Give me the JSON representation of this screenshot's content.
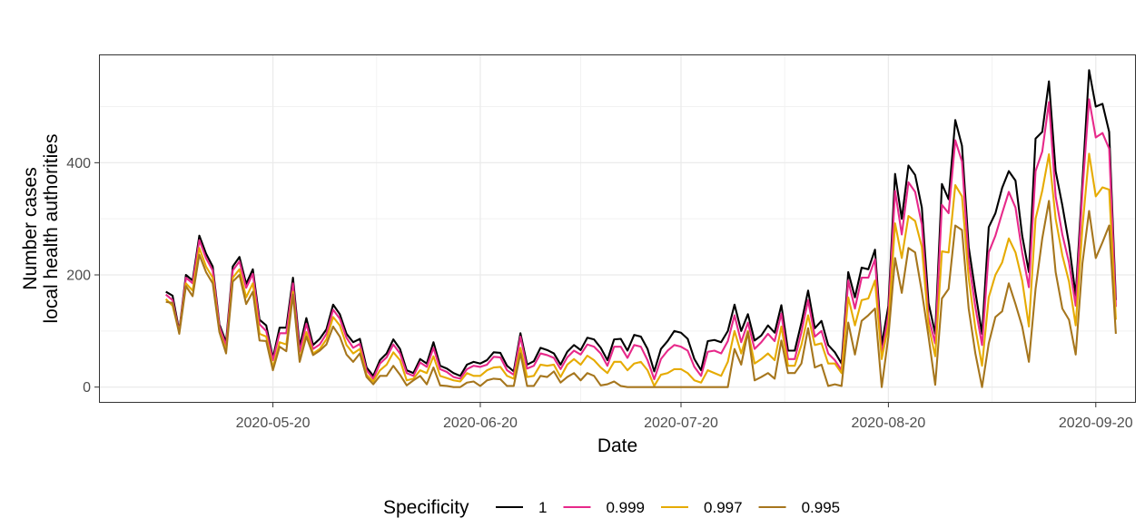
{
  "chart_data": {
    "type": "line",
    "xlabel": "Date",
    "ylabel_lines": [
      "Number cases",
      "local health authorities"
    ],
    "x_ticks": [
      "2020-05-20",
      "2020-06-20",
      "2020-07-20",
      "2020-08-20",
      "2020-09-20"
    ],
    "y_ticks": [
      0,
      200,
      400
    ],
    "xlim": [
      "2020-04-24",
      "2020-09-26"
    ],
    "ylim": [
      -28,
      593
    ],
    "grid": true,
    "legend_position": "bottom",
    "legend_title": "Specificity",
    "start_date": "2020-05-04",
    "series": [
      {
        "name": "1",
        "color": "#000000",
        "values": [
          170,
          163,
          100,
          200,
          190,
          270,
          238,
          215,
          112,
          80,
          215,
          232,
          184,
          210,
          120,
          110,
          52,
          106,
          106,
          195,
          72,
          123,
          75,
          86,
          103,
          147,
          130,
          95,
          80,
          86,
          35,
          20,
          48,
          60,
          85,
          68,
          30,
          25,
          50,
          42,
          80,
          38,
          33,
          25,
          20,
          40,
          45,
          42,
          48,
          62,
          61,
          38,
          28,
          96,
          40,
          46,
          70,
          66,
          60,
          40,
          63,
          75,
          66,
          88,
          85,
          70,
          48,
          85,
          86,
          65,
          93,
          90,
          68,
          28,
          68,
          82,
          100,
          97,
          86,
          50,
          30,
          82,
          84,
          80,
          100,
          147,
          100,
          130,
          83,
          92,
          110,
          97,
          146,
          65,
          65,
          115,
          172,
          105,
          118,
          75,
          62,
          42,
          205,
          160,
          213,
          210,
          245,
          75,
          145,
          380,
          300,
          395,
          378,
          320,
          150,
          95,
          362,
          335,
          476,
          430,
          250,
          170,
          95,
          285,
          310,
          355,
          385,
          368,
          270,
          205,
          443,
          455,
          545,
          385,
          324,
          255,
          163,
          365,
          565,
          500,
          505,
          455,
          155
        ]
      },
      {
        "name": "0.999",
        "color": "#e7298a",
        "values": [
          165,
          155,
          98,
          195,
          185,
          262,
          230,
          208,
          108,
          74,
          208,
          224,
          177,
          202,
          112,
          100,
          48,
          96,
          96,
          185,
          63,
          113,
          68,
          76,
          95,
          138,
          122,
          88,
          70,
          77,
          30,
          15,
          42,
          53,
          76,
          60,
          25,
          20,
          44,
          36,
          70,
          32,
          27,
          18,
          15,
          32,
          38,
          36,
          40,
          54,
          53,
          30,
          22,
          90,
          33,
          38,
          60,
          57,
          52,
          32,
          53,
          65,
          58,
          76,
          72,
          60,
          38,
          72,
          72,
          52,
          75,
          72,
          48,
          14,
          50,
          65,
          75,
          72,
          65,
          36,
          20,
          63,
          65,
          60,
          82,
          128,
          80,
          115,
          68,
          80,
          95,
          82,
          131,
          50,
          50,
          98,
          155,
          90,
          100,
          60,
          48,
          30,
          190,
          140,
          195,
          195,
          228,
          58,
          130,
          350,
          272,
          365,
          348,
          290,
          125,
          78,
          325,
          310,
          440,
          402,
          225,
          143,
          75,
          240,
          270,
          310,
          348,
          320,
          240,
          178,
          385,
          420,
          508,
          340,
          272,
          222,
          145,
          348,
          513,
          445,
          453,
          425,
          143
        ]
      },
      {
        "name": "0.997",
        "color": "#e6ab02",
        "values": [
          157,
          145,
          97,
          185,
          172,
          248,
          215,
          195,
          100,
          65,
          195,
          210,
          160,
          185,
          95,
          90,
          35,
          80,
          76,
          170,
          48,
          98,
          60,
          68,
          85,
          125,
          110,
          75,
          60,
          68,
          22,
          10,
          30,
          40,
          62,
          48,
          12,
          15,
          30,
          25,
          55,
          20,
          16,
          12,
          10,
          25,
          20,
          20,
          30,
          35,
          36,
          20,
          15,
          70,
          18,
          20,
          40,
          38,
          40,
          18,
          40,
          50,
          40,
          56,
          48,
          35,
          25,
          45,
          45,
          30,
          42,
          45,
          30,
          2,
          22,
          25,
          32,
          32,
          25,
          12,
          8,
          30,
          25,
          20,
          45,
          100,
          60,
          100,
          42,
          50,
          60,
          48,
          108,
          38,
          38,
          75,
          128,
          75,
          78,
          42,
          42,
          25,
          160,
          110,
          155,
          158,
          190,
          50,
          110,
          292,
          230,
          305,
          296,
          250,
          110,
          55,
          242,
          240,
          360,
          340,
          195,
          105,
          38,
          160,
          200,
          222,
          265,
          240,
          190,
          108,
          300,
          350,
          415,
          300,
          235,
          188,
          110,
          284,
          416,
          340,
          356,
          352,
          120
        ]
      },
      {
        "name": "0.995",
        "color": "#a6761d",
        "values": [
          152,
          150,
          95,
          180,
          162,
          236,
          205,
          185,
          98,
          60,
          188,
          200,
          148,
          170,
          83,
          82,
          30,
          72,
          64,
          165,
          45,
          90,
          57,
          65,
          76,
          108,
          90,
          58,
          45,
          60,
          18,
          5,
          20,
          20,
          38,
          22,
          3,
          12,
          20,
          5,
          35,
          3,
          2,
          0,
          0,
          8,
          10,
          2,
          12,
          15,
          14,
          2,
          2,
          60,
          2,
          2,
          20,
          18,
          28,
          8,
          18,
          25,
          12,
          25,
          20,
          3,
          5,
          10,
          2,
          0,
          0,
          0,
          0,
          0,
          0,
          0,
          0,
          0,
          0,
          0,
          0,
          0,
          0,
          0,
          0,
          68,
          40,
          98,
          12,
          18,
          25,
          15,
          83,
          25,
          25,
          42,
          105,
          35,
          40,
          2,
          5,
          2,
          115,
          58,
          118,
          128,
          140,
          0,
          90,
          230,
          168,
          248,
          240,
          170,
          90,
          4,
          158,
          175,
          288,
          280,
          140,
          60,
          0,
          78,
          125,
          135,
          185,
          148,
          108,
          45,
          175,
          265,
          332,
          205,
          140,
          120,
          58,
          220,
          314,
          230,
          258,
          288,
          95
        ]
      }
    ]
  }
}
